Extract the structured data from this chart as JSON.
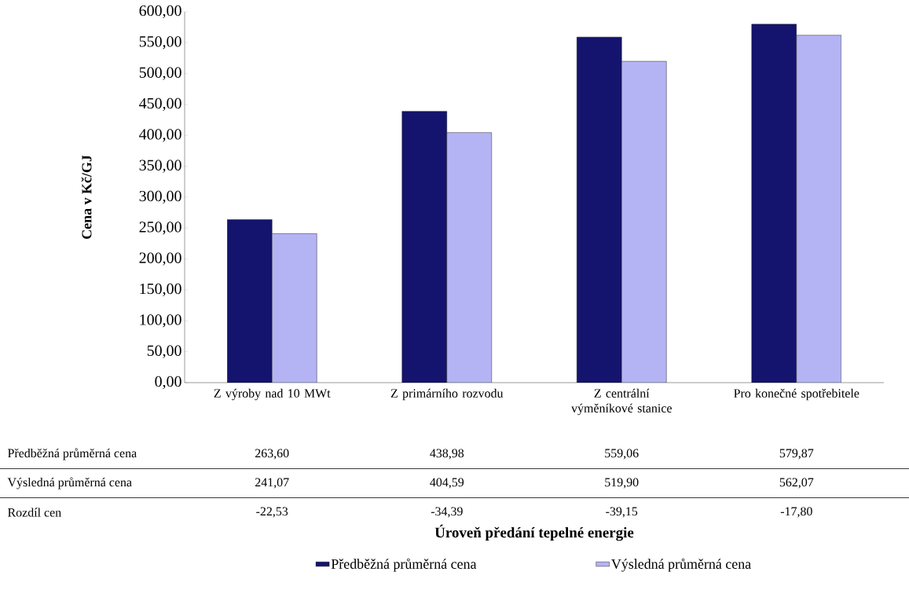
{
  "chart_data": {
    "type": "bar",
    "ylabel": "Cena v Kč/GJ",
    "categories": [
      "Z výroby nad 10 MWt",
      "Z primárního rozvodu",
      "Z centrální výměníkové stanice",
      "Pro konečné spotřebitele"
    ],
    "series": [
      {
        "name": "Předběžná průměrná cena",
        "color": "#14146e",
        "values": [
          263.6,
          438.98,
          559.06,
          579.87
        ],
        "value_labels": [
          "263,60",
          "438,98",
          "559,06",
          "579,87"
        ]
      },
      {
        "name": "Výsledná průměrná cena",
        "color": "#b4b4f4",
        "values": [
          241.07,
          404.59,
          519.9,
          562.07
        ],
        "value_labels": [
          "241,07",
          "404,59",
          "519,90",
          "562,07"
        ]
      }
    ],
    "annotations": [
      "Rozdíl cen",
      "-22,53",
      "-34,39",
      "-39,15",
      "-17,80",
      "Úroveň předání tepelné energie"
    ],
    "ylim": [
      0,
      600
    ],
    "yticks": [
      {
        "value": 0,
        "label": "0,00"
      },
      {
        "value": 50,
        "label": "50,00"
      },
      {
        "value": 100,
        "label": "100,00"
      },
      {
        "value": 150,
        "label": "150,00"
      },
      {
        "value": 200,
        "label": "200,00"
      },
      {
        "value": 250,
        "label": "250,00"
      },
      {
        "value": 300,
        "label": "300,00"
      },
      {
        "value": 350,
        "label": "350,00"
      },
      {
        "value": 400,
        "label": "400,00"
      },
      {
        "value": 450,
        "label": "450,00"
      },
      {
        "value": 500,
        "label": "500,00"
      },
      {
        "value": 550,
        "label": "550,00"
      },
      {
        "value": 600,
        "label": "600,00"
      }
    ],
    "legend": "bottom"
  }
}
